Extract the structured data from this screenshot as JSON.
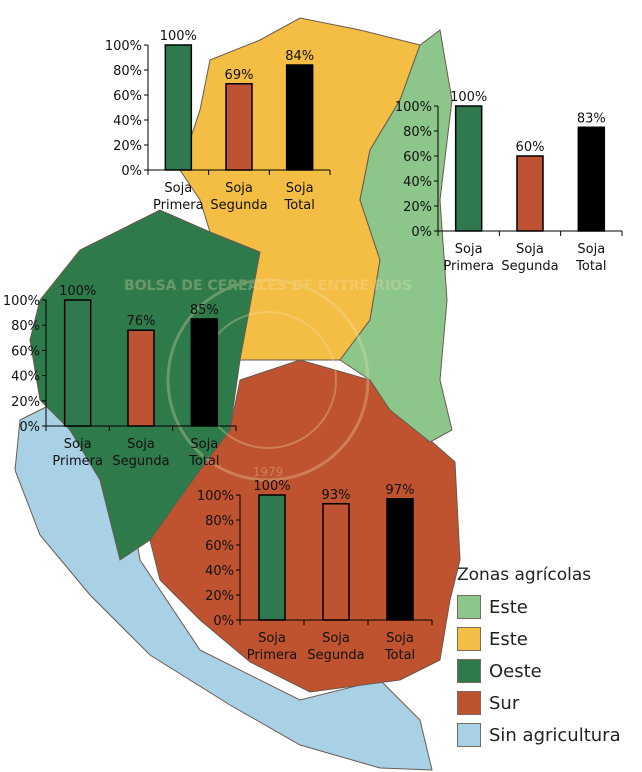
{
  "watermark": {
    "text": "BOLSA DE CEREALES DE ENTRE RIOS",
    "year": "1979"
  },
  "legend": {
    "title": "Zonas agrícolas",
    "items": [
      {
        "label": "Este",
        "color": "#8cc68a"
      },
      {
        "label": "Este",
        "color": "#f4be45"
      },
      {
        "label": "Oeste",
        "color": "#2f7a4a"
      },
      {
        "label": "Sur",
        "color": "#bf5330"
      },
      {
        "label": "Sin agricultura",
        "color": "#a9d1e6"
      }
    ]
  },
  "chart_data": [
    {
      "type": "bar",
      "zone": "norte",
      "categories": [
        [
          "Soja",
          "Primera"
        ],
        [
          "Soja",
          "Segunda"
        ],
        [
          "Soja",
          "Total"
        ]
      ],
      "values": [
        100,
        69,
        84
      ],
      "labels": [
        "100%",
        "69%",
        "84%"
      ],
      "yticks": [
        "0%",
        "20%",
        "40%",
        "60%",
        "80%",
        "100%"
      ],
      "ylim": [
        0,
        100
      ],
      "colors": [
        "#2e7a4e",
        "#bd5332",
        "#000000"
      ]
    },
    {
      "type": "bar",
      "zone": "este",
      "categories": [
        [
          "Soja",
          "Primera"
        ],
        [
          "Soja",
          "Segunda"
        ],
        [
          "Soja",
          "Total"
        ]
      ],
      "values": [
        100,
        60,
        83
      ],
      "labels": [
        "100%",
        "60%",
        "83%"
      ],
      "yticks": [
        "0%",
        "20%",
        "40%",
        "60%",
        "80%",
        "100%"
      ],
      "ylim": [
        0,
        100
      ],
      "colors": [
        "#2e7a4e",
        "#bd5332",
        "#000000"
      ]
    },
    {
      "type": "bar",
      "zone": "oeste",
      "categories": [
        [
          "Soja",
          "Primera"
        ],
        [
          "Soja",
          "Segunda"
        ],
        [
          "Soja",
          "Total"
        ]
      ],
      "values": [
        100,
        76,
        85
      ],
      "labels": [
        "100%",
        "76%",
        "85%"
      ],
      "yticks": [
        "0%",
        "20%",
        "40%",
        "60%",
        "80%",
        "100%"
      ],
      "ylim": [
        0,
        100
      ],
      "colors": [
        "#2e7a4e",
        "#bd5332",
        "#000000"
      ]
    },
    {
      "type": "bar",
      "zone": "sur",
      "categories": [
        [
          "Soja",
          "Primera"
        ],
        [
          "Soja",
          "Segunda"
        ],
        [
          "Soja",
          "Total"
        ]
      ],
      "values": [
        100,
        93,
        97
      ],
      "labels": [
        "100%",
        "93%",
        "97%"
      ],
      "yticks": [
        "0%",
        "20%",
        "40%",
        "60%",
        "80%",
        "100%"
      ],
      "ylim": [
        0,
        100
      ],
      "colors": [
        "#2e7a4e",
        "#bd5332",
        "#000000"
      ]
    }
  ]
}
